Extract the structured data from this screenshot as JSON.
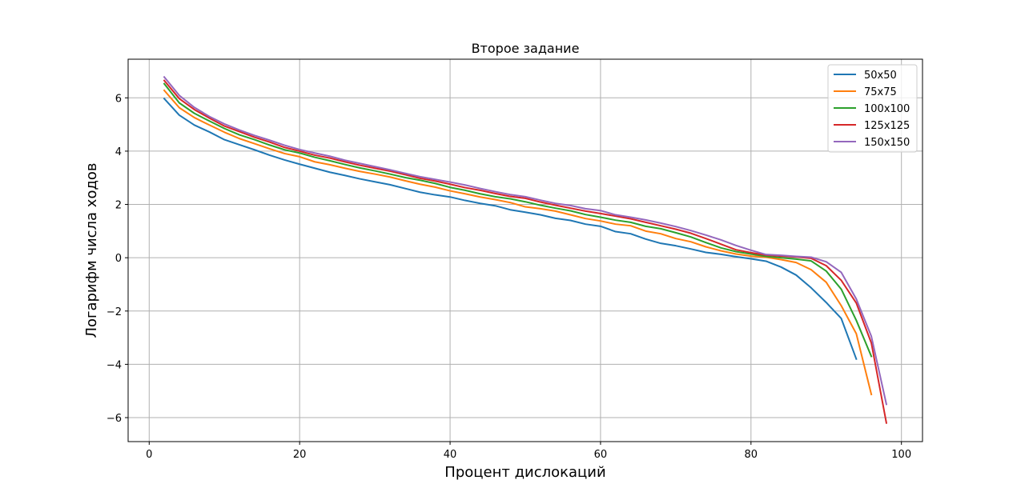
{
  "chart_data": {
    "type": "line",
    "title": "Второе задание",
    "xlabel": "Процент дислокаций",
    "ylabel": "Логарифм числа ходов",
    "xlim": [
      -2.8,
      102.8
    ],
    "ylim": [
      -6.9,
      7.45
    ],
    "xticks": [
      0,
      20,
      40,
      60,
      80,
      100
    ],
    "yticks": [
      -6,
      -4,
      -2,
      0,
      2,
      4,
      6
    ],
    "grid": true,
    "legend_position": "top-right",
    "series": [
      {
        "name": "50x50",
        "color": "#1f77b4",
        "x": [
          2,
          4,
          6,
          8,
          10,
          12,
          14,
          16,
          18,
          20,
          22,
          24,
          26,
          28,
          30,
          32,
          34,
          36,
          38,
          40,
          42,
          44,
          46,
          48,
          50,
          52,
          54,
          56,
          58,
          60,
          62,
          64,
          66,
          68,
          70,
          72,
          74,
          76,
          78,
          80,
          82,
          84,
          86,
          88,
          90,
          92,
          94
        ],
        "y": [
          5.97,
          5.35,
          4.98,
          4.72,
          4.43,
          4.24,
          4.05,
          3.85,
          3.67,
          3.51,
          3.36,
          3.21,
          3.09,
          2.96,
          2.85,
          2.74,
          2.6,
          2.46,
          2.36,
          2.28,
          2.15,
          2.04,
          1.95,
          1.8,
          1.71,
          1.61,
          1.48,
          1.4,
          1.26,
          1.18,
          0.98,
          0.9,
          0.7,
          0.54,
          0.45,
          0.33,
          0.2,
          0.13,
          0.04,
          -0.04,
          -0.13,
          -0.35,
          -0.65,
          -1.13,
          -1.68,
          -2.28,
          -3.8
        ]
      },
      {
        "name": "75x75",
        "color": "#ff7f0e",
        "x": [
          2,
          4,
          6,
          8,
          10,
          12,
          14,
          16,
          18,
          20,
          22,
          24,
          26,
          28,
          30,
          32,
          34,
          36,
          38,
          40,
          42,
          44,
          46,
          48,
          50,
          52,
          54,
          56,
          58,
          60,
          62,
          64,
          66,
          68,
          70,
          72,
          74,
          76,
          78,
          80,
          82,
          84,
          86,
          88,
          90,
          92,
          94,
          96
        ],
        "y": [
          6.28,
          5.63,
          5.26,
          4.98,
          4.71,
          4.47,
          4.28,
          4.09,
          3.91,
          3.79,
          3.6,
          3.49,
          3.36,
          3.24,
          3.14,
          3.03,
          2.89,
          2.76,
          2.65,
          2.51,
          2.4,
          2.28,
          2.18,
          2.07,
          1.91,
          1.84,
          1.75,
          1.61,
          1.47,
          1.38,
          1.26,
          1.2,
          1.0,
          0.9,
          0.72,
          0.6,
          0.41,
          0.26,
          0.14,
          0.06,
          0.02,
          -0.07,
          -0.18,
          -0.45,
          -0.92,
          -1.8,
          -2.85,
          -5.13
        ]
      },
      {
        "name": "100x100",
        "color": "#2ca02c",
        "x": [
          2,
          4,
          6,
          8,
          10,
          12,
          14,
          16,
          18,
          20,
          22,
          24,
          26,
          28,
          30,
          32,
          34,
          36,
          38,
          40,
          42,
          44,
          46,
          48,
          50,
          52,
          54,
          56,
          58,
          60,
          62,
          64,
          66,
          68,
          70,
          72,
          74,
          76,
          78,
          80,
          82,
          84,
          86,
          88,
          90,
          92,
          94,
          96
        ],
        "y": [
          6.53,
          5.81,
          5.42,
          5.13,
          4.85,
          4.61,
          4.43,
          4.23,
          4.05,
          3.93,
          3.77,
          3.64,
          3.5,
          3.37,
          3.26,
          3.14,
          3.01,
          2.91,
          2.79,
          2.64,
          2.53,
          2.4,
          2.29,
          2.21,
          2.1,
          1.97,
          1.86,
          1.76,
          1.62,
          1.52,
          1.41,
          1.33,
          1.18,
          1.09,
          0.94,
          0.78,
          0.57,
          0.37,
          0.23,
          0.14,
          0.05,
          0.0,
          -0.05,
          -0.12,
          -0.5,
          -1.18,
          -2.35,
          -3.7
        ]
      },
      {
        "name": "125x125",
        "color": "#d62728",
        "x": [
          2,
          4,
          6,
          8,
          10,
          12,
          14,
          16,
          18,
          20,
          22,
          24,
          26,
          28,
          30,
          32,
          34,
          36,
          38,
          40,
          42,
          44,
          46,
          48,
          50,
          52,
          54,
          56,
          58,
          60,
          62,
          64,
          66,
          68,
          70,
          72,
          74,
          76,
          78,
          80,
          82,
          84,
          86,
          88,
          90,
          92,
          94,
          96,
          98
        ],
        "y": [
          6.65,
          5.97,
          5.56,
          5.24,
          4.94,
          4.73,
          4.52,
          4.34,
          4.14,
          4.0,
          3.85,
          3.74,
          3.6,
          3.47,
          3.36,
          3.25,
          3.12,
          2.98,
          2.88,
          2.76,
          2.63,
          2.53,
          2.41,
          2.3,
          2.23,
          2.09,
          1.97,
          1.86,
          1.75,
          1.66,
          1.56,
          1.46,
          1.33,
          1.2,
          1.07,
          0.92,
          0.72,
          0.51,
          0.3,
          0.19,
          0.1,
          0.06,
          0.03,
          -0.02,
          -0.3,
          -0.85,
          -1.7,
          -3.2,
          -6.2
        ]
      },
      {
        "name": "150x150",
        "color": "#9467bd",
        "x": [
          2,
          4,
          6,
          8,
          10,
          12,
          14,
          16,
          18,
          20,
          22,
          24,
          26,
          28,
          30,
          32,
          34,
          36,
          38,
          40,
          42,
          44,
          46,
          48,
          50,
          52,
          54,
          56,
          58,
          60,
          62,
          64,
          66,
          68,
          70,
          72,
          74,
          76,
          78,
          80,
          82,
          84,
          86,
          88,
          90,
          92,
          94,
          96,
          98
        ],
        "y": [
          6.78,
          6.09,
          5.64,
          5.3,
          5.02,
          4.79,
          4.59,
          4.41,
          4.22,
          4.06,
          3.93,
          3.81,
          3.66,
          3.54,
          3.42,
          3.3,
          3.17,
          3.04,
          2.94,
          2.84,
          2.73,
          2.6,
          2.48,
          2.37,
          2.29,
          2.16,
          2.04,
          1.96,
          1.84,
          1.77,
          1.61,
          1.52,
          1.42,
          1.3,
          1.17,
          1.02,
          0.85,
          0.67,
          0.46,
          0.28,
          0.12,
          0.09,
          0.05,
          0.02,
          -0.15,
          -0.55,
          -1.55,
          -2.95,
          -5.5
        ]
      }
    ]
  }
}
